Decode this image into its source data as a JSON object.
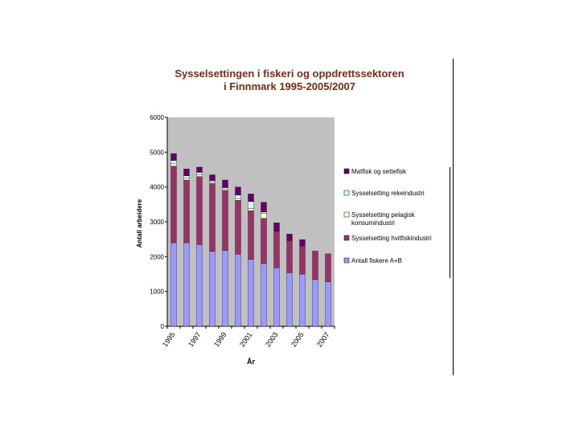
{
  "chart_data": {
    "type": "bar",
    "stacked": true,
    "title_lines": [
      "Sysselsettingen i fiskeri og oppdrettssektoren",
      "i Finnmark 1995-2005/2007"
    ],
    "xlabel": "År",
    "ylabel": "Antall arbeidere",
    "ylim": [
      0,
      6000
    ],
    "yticks": [
      0,
      1000,
      2000,
      3000,
      4000,
      5000,
      6000
    ],
    "categories": [
      "1995",
      "1996",
      "1997",
      "1998",
      "1999",
      "2000",
      "2001",
      "2002",
      "2003",
      "2004",
      "2005",
      "2006",
      "2007"
    ],
    "x_tick_labels": [
      "1995",
      "1997",
      "1999",
      "2001",
      "2003",
      "2005",
      "2007"
    ],
    "plot_background": "#c0c0c0",
    "legend_position": "right",
    "series": [
      {
        "name": "Antall fiskere A+B",
        "color": "#9999ff",
        "values": [
          2400,
          2400,
          2350,
          2150,
          2180,
          2070,
          1920,
          1800,
          1680,
          1540,
          1500,
          1340,
          1280
        ]
      },
      {
        "name": "Sysselsetting hvitfiskindustri",
        "color": "#993366",
        "values": [
          2200,
          1800,
          1950,
          1950,
          1720,
          1550,
          1400,
          1300,
          1050,
          920,
          800,
          820,
          800
        ]
      },
      {
        "name": "Sysselsetting pelagisk konsumindustri",
        "color": "#ffffcc",
        "values": [
          80,
          60,
          60,
          40,
          40,
          50,
          60,
          140,
          0,
          0,
          0,
          0,
          0
        ]
      },
      {
        "name": "Sysselsetting rekeindustri",
        "color": "#ccffff",
        "values": [
          80,
          60,
          60,
          40,
          40,
          100,
          200,
          40,
          0,
          0,
          0,
          0,
          0
        ]
      },
      {
        "name": "Matfisk og settefisk",
        "color": "#660066",
        "values": [
          200,
          200,
          150,
          170,
          220,
          230,
          220,
          280,
          240,
          190,
          190,
          0,
          0
        ]
      }
    ],
    "legend_order": [
      4,
      3,
      2,
      1,
      0
    ]
  }
}
